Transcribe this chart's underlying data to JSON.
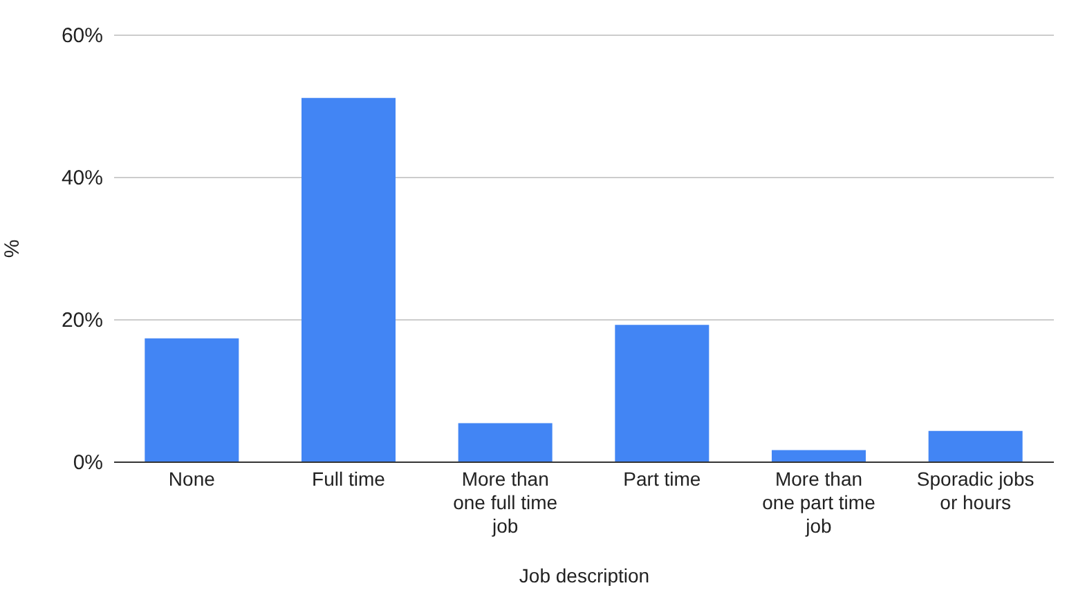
{
  "chart_data": {
    "type": "bar",
    "xlabel": "Job description",
    "ylabel": "%",
    "categories": [
      "None",
      "Full time",
      "More than one full time job",
      "Part time",
      "More than one part time job",
      "Sporadic jobs or hours"
    ],
    "values": [
      17.3,
      51.1,
      5.4,
      19.2,
      1.6,
      4.3
    ],
    "color": "#4285f4",
    "ylim": [
      0,
      60
    ],
    "yticks": [
      {
        "value": 0,
        "label": "0%"
      },
      {
        "value": 20,
        "label": "20%"
      },
      {
        "value": 40,
        "label": "40%"
      },
      {
        "value": 60,
        "label": "60%"
      }
    ],
    "grid": "y"
  }
}
